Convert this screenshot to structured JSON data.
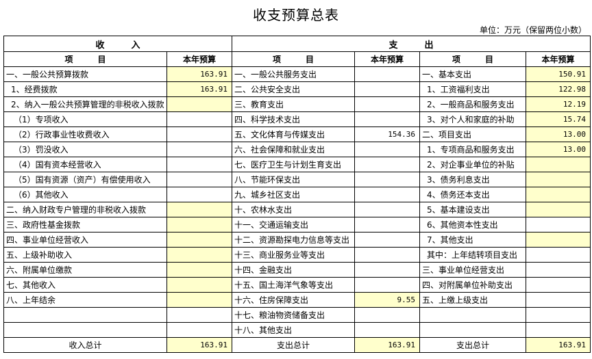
{
  "title": "收支预算总表",
  "unit": "单位：万元（保留两位小数）",
  "header": {
    "income": "收　　　入",
    "expense": "支　　　出",
    "item": "项　　　目",
    "budget": "本年预算"
  },
  "highlight_color": "#ffffcc",
  "rows": [
    {
      "in_item": "一、一般公共预算拨款",
      "in_val": "163.91",
      "in_y": true,
      "ex_item": "一、一般公共服务支出",
      "ex_val": "",
      "ex_y": false,
      "ex2_item": "一、基本支出",
      "ex2_val": "150.91",
      "ex2_y": true
    },
    {
      "in_item": "1、经费拨款",
      "in_val": "163.91",
      "in_y": true,
      "ex_item": "二、公共安全支出",
      "ex_val": "",
      "ex_y": false,
      "ex2_item": "1、工资福利支出",
      "ex2_val": "122.98",
      "ex2_y": true
    },
    {
      "in_item": "2、纳入一般公共预算管理的非税收入拨款",
      "in_val": "",
      "in_y": true,
      "ex_item": "三、教育支出",
      "ex_val": "",
      "ex_y": false,
      "ex2_item": "2、一般商品和服务支出",
      "ex2_val": "12.19",
      "ex2_y": true
    },
    {
      "in_item": "（1）专项收入",
      "in_val": "",
      "in_y": false,
      "ex_item": "四、科学技术支出",
      "ex_val": "",
      "ex_y": false,
      "ex2_item": "3、对个人和家庭的补助",
      "ex2_val": "15.74",
      "ex2_y": true
    },
    {
      "in_item": "（2）行政事业性收费收入",
      "in_val": "",
      "in_y": false,
      "ex_item": "五、文化体育与传媒支出",
      "ex_val": "154.36",
      "ex_y": false,
      "ex2_item": "二、项目支出",
      "ex2_val": "13.00",
      "ex2_y": true
    },
    {
      "in_item": "（3）罚没收入",
      "in_val": "",
      "in_y": false,
      "ex_item": "六、社会保障和就业支出",
      "ex_val": "",
      "ex_y": false,
      "ex2_item": "1、专项商品和服务支出",
      "ex2_val": "13.00",
      "ex2_y": true
    },
    {
      "in_item": "（4）国有资本经营收入",
      "in_val": "",
      "in_y": false,
      "ex_item": "七、医疗卫生与计划生育支出",
      "ex_val": "",
      "ex_y": false,
      "ex2_item": "2、对企事业单位的补贴",
      "ex2_val": "",
      "ex2_y": true
    },
    {
      "in_item": "（5）国有资源（资产）有偿使用收入",
      "in_val": "",
      "in_y": false,
      "ex_item": "八、节能环保支出",
      "ex_val": "",
      "ex_y": false,
      "ex2_item": "3、债务利息支出",
      "ex2_val": "",
      "ex2_y": true
    },
    {
      "in_item": "（6）其他收入",
      "in_val": "",
      "in_y": false,
      "ex_item": "九、城乡社区支出",
      "ex_val": "",
      "ex_y": false,
      "ex2_item": "4、债务还本支出",
      "ex2_val": "",
      "ex2_y": true
    },
    {
      "in_item": "二、纳入财政专户管理的非税收入拨款",
      "in_val": "",
      "in_y": true,
      "ex_item": "十、农林水支出",
      "ex_val": "",
      "ex_y": false,
      "ex2_item": "5、基本建设支出",
      "ex2_val": "",
      "ex2_y": true
    },
    {
      "in_item": "三、政府性基金拨款",
      "in_val": "",
      "in_y": true,
      "ex_item": "十一、交通运输支出",
      "ex_val": "",
      "ex_y": false,
      "ex2_item": "6、其他资本性支出",
      "ex2_val": "",
      "ex2_y": false
    },
    {
      "in_item": "四、事业单位经营收入",
      "in_val": "",
      "in_y": true,
      "ex_item": "十二、资源勘探电力信息等支出",
      "ex_val": "",
      "ex_y": false,
      "ex2_item": "7、其他支出",
      "ex2_val": "",
      "ex2_y": true
    },
    {
      "in_item": "五、上级补助收入",
      "in_val": "",
      "in_y": true,
      "ex_item": "十三、商业服务业等支出",
      "ex_val": "",
      "ex_y": false,
      "ex2_item": "其中：上年结转项目支出",
      "ex2_val": "",
      "ex2_y": false
    },
    {
      "in_item": "六、附属单位缴款",
      "in_val": "",
      "in_y": true,
      "ex_item": "十四、金融支出",
      "ex_val": "",
      "ex_y": false,
      "ex2_item": "三、事业单位经营支出",
      "ex2_val": "",
      "ex2_y": false
    },
    {
      "in_item": "七、其他收入",
      "in_val": "",
      "in_y": true,
      "ex_item": "十五、国土海洋气象等支出",
      "ex_val": "",
      "ex_y": false,
      "ex2_item": "四、对附属单位补助支出",
      "ex2_val": "",
      "ex2_y": false
    },
    {
      "in_item": "八、上年结余",
      "in_val": "",
      "in_y": true,
      "ex_item": "十六、住房保障支出",
      "ex_val": "9.55",
      "ex_y": true,
      "ex2_item": "五、上缴上级支出",
      "ex2_val": "",
      "ex2_y": false
    },
    {
      "in_item": "",
      "in_val": "",
      "in_y": false,
      "ex_item": "十七、粮油物资储备支出",
      "ex_val": "",
      "ex_y": false,
      "ex2_item": "",
      "ex2_val": "",
      "ex2_y": false
    },
    {
      "in_item": "",
      "in_val": "",
      "in_y": false,
      "ex_item": "十八、其他支出",
      "ex_val": "",
      "ex_y": false,
      "ex2_item": "",
      "ex2_val": "",
      "ex2_y": false
    }
  ],
  "totals": {
    "income_label": "收入总计",
    "income_value": "163.91",
    "expense_label": "支出总计",
    "expense_value": "163.91",
    "expense2_label": "支出总计",
    "expense2_value": "163.91"
  }
}
